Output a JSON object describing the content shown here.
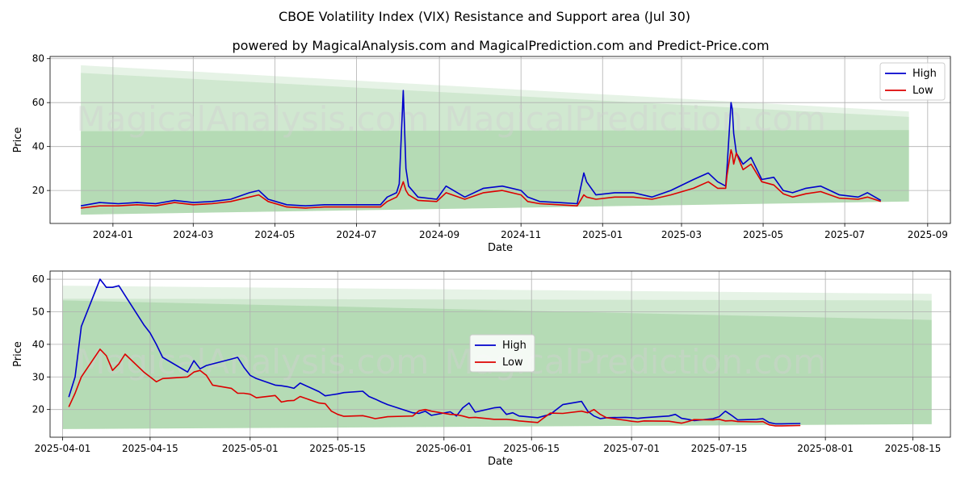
{
  "title": "CBOE Volatility Index (VIX) Resistance and Support area (Jul 30)",
  "subtitle": "powered by MagicalAnalysis.com and MagicalPrediction.com and Predict-Price.com",
  "watermarks": [
    "MagicalAnalysis.com",
    "MagicalPrediction.com"
  ],
  "colors": {
    "high": "#0000cc",
    "low": "#dd0000",
    "band": "#2e9b2e",
    "grid": "#b0b0b0"
  },
  "chart_data": [
    {
      "type": "line",
      "xlabel": "Date",
      "ylabel": "Price",
      "xlim": [
        "2023-11-15",
        "2025-09-18"
      ],
      "ylim": [
        5,
        81
      ],
      "yticks": [
        20,
        40,
        60,
        80
      ],
      "xticks": [
        "2024-01",
        "2024-03",
        "2024-05",
        "2024-07",
        "2024-09",
        "2024-11",
        "2025-01",
        "2025-03",
        "2025-05",
        "2025-07",
        "2025-09"
      ],
      "grid": true,
      "legend": "top-right",
      "bands": [
        {
          "x": [
            "2023-12-08",
            "2025-08-18"
          ],
          "upper": [
            77,
            56
          ],
          "lower": [
            9,
            15
          ],
          "opacity": 0.12
        },
        {
          "x": [
            "2023-12-08",
            "2025-08-18"
          ],
          "upper": [
            73.5,
            53.5
          ],
          "lower": [
            9,
            15
          ],
          "opacity": 0.12
        },
        {
          "x": [
            "2023-12-08",
            "2025-08-18"
          ],
          "upper": [
            47,
            47.5
          ],
          "lower": [
            9,
            15
          ],
          "opacity": 0.16
        }
      ],
      "x": [
        "2023-12-08",
        "2023-12-22",
        "2024-01-05",
        "2024-01-19",
        "2024-02-02",
        "2024-02-16",
        "2024-03-01",
        "2024-03-15",
        "2024-03-29",
        "2024-04-12",
        "2024-04-19",
        "2024-04-26",
        "2024-05-10",
        "2024-05-24",
        "2024-06-07",
        "2024-06-21",
        "2024-07-05",
        "2024-07-19",
        "2024-07-24",
        "2024-07-31",
        "2024-08-02",
        "2024-08-05",
        "2024-08-07",
        "2024-08-09",
        "2024-08-16",
        "2024-08-30",
        "2024-09-06",
        "2024-09-20",
        "2024-10-04",
        "2024-10-18",
        "2024-11-01",
        "2024-11-06",
        "2024-11-15",
        "2024-11-29",
        "2024-12-13",
        "2024-12-18",
        "2024-12-20",
        "2024-12-27",
        "2025-01-10",
        "2025-01-24",
        "2025-02-07",
        "2025-02-21",
        "2025-03-10",
        "2025-03-21",
        "2025-03-28",
        "2025-04-03",
        "2025-04-04",
        "2025-04-07",
        "2025-04-08",
        "2025-04-09",
        "2025-04-11",
        "2025-04-16",
        "2025-04-22",
        "2025-04-30",
        "2025-05-09",
        "2025-05-16",
        "2025-05-23",
        "2025-06-02",
        "2025-06-13",
        "2025-06-20",
        "2025-06-27",
        "2025-07-11",
        "2025-07-18",
        "2025-07-28"
      ],
      "series": [
        {
          "name": "High",
          "values": [
            13,
            14.5,
            14,
            14.5,
            14,
            15.5,
            14.5,
            15,
            16,
            19,
            20,
            16,
            13.5,
            13,
            13.5,
            13.5,
            13.5,
            13.5,
            17,
            19,
            23,
            65.5,
            30,
            22,
            17,
            16,
            22,
            17,
            21,
            22,
            20,
            17,
            15,
            14.5,
            14,
            28,
            24,
            18,
            19,
            19,
            17,
            20,
            25,
            28,
            24,
            22,
            30,
            60,
            57,
            46,
            37,
            32,
            35,
            25,
            26,
            20,
            19,
            21,
            22,
            20,
            18,
            17,
            19,
            15.5
          ]
        },
        {
          "name": "Low",
          "values": [
            12,
            13,
            13,
            13.5,
            13,
            14.5,
            13.5,
            14,
            15,
            17,
            18,
            15,
            12.5,
            12,
            12.5,
            12.5,
            12.5,
            12.5,
            15,
            17,
            19,
            24,
            20,
            18,
            15.5,
            15,
            19,
            16,
            19,
            20,
            18,
            15,
            14,
            13.5,
            13,
            18,
            17,
            16,
            17,
            17,
            16,
            18,
            21,
            24,
            21,
            21,
            27,
            38.5,
            36.5,
            32,
            37,
            29.5,
            32,
            24,
            22.5,
            18.5,
            17,
            18.5,
            19.5,
            18,
            16.5,
            16,
            17,
            15
          ]
        }
      ]
    },
    {
      "type": "line",
      "xlabel": "Date",
      "ylabel": "Price",
      "xlim": [
        "2025-03-30",
        "2025-08-21"
      ],
      "ylim": [
        11.5,
        62.5
      ],
      "yticks": [
        20,
        30,
        40,
        50,
        60
      ],
      "xticks": [
        "2025-04-01",
        "2025-04-15",
        "2025-05-01",
        "2025-05-15",
        "2025-06-01",
        "2025-06-15",
        "2025-07-01",
        "2025-07-15",
        "2025-08-01",
        "2025-08-15"
      ],
      "grid": true,
      "legend": "center",
      "bands": [
        {
          "x": [
            "2025-04-01",
            "2025-08-18"
          ],
          "upper": [
            58,
            55.5
          ],
          "lower": [
            14,
            15.5
          ],
          "opacity": 0.12
        },
        {
          "x": [
            "2025-04-01",
            "2025-08-18"
          ],
          "upper": [
            54,
            53.5
          ],
          "lower": [
            14,
            15.5
          ],
          "opacity": 0.12
        },
        {
          "x": [
            "2025-04-01",
            "2025-08-18"
          ],
          "upper": [
            53.5,
            47.5
          ],
          "lower": [
            14,
            15.5
          ],
          "opacity": 0.16
        }
      ],
      "x": [
        "2025-04-02",
        "2025-04-03",
        "2025-04-04",
        "2025-04-07",
        "2025-04-08",
        "2025-04-09",
        "2025-04-10",
        "2025-04-11",
        "2025-04-14",
        "2025-04-15",
        "2025-04-16",
        "2025-04-17",
        "2025-04-21",
        "2025-04-22",
        "2025-04-23",
        "2025-04-24",
        "2025-04-25",
        "2025-04-28",
        "2025-04-29",
        "2025-04-30",
        "2025-05-01",
        "2025-05-02",
        "2025-05-05",
        "2025-05-06",
        "2025-05-07",
        "2025-05-08",
        "2025-05-09",
        "2025-05-12",
        "2025-05-13",
        "2025-05-14",
        "2025-05-15",
        "2025-05-16",
        "2025-05-19",
        "2025-05-20",
        "2025-05-21",
        "2025-05-22",
        "2025-05-23",
        "2025-05-27",
        "2025-05-28",
        "2025-05-29",
        "2025-05-30",
        "2025-06-02",
        "2025-06-03",
        "2025-06-04",
        "2025-06-05",
        "2025-06-06",
        "2025-06-09",
        "2025-06-10",
        "2025-06-11",
        "2025-06-12",
        "2025-06-13",
        "2025-06-16",
        "2025-06-17",
        "2025-06-18",
        "2025-06-20",
        "2025-06-23",
        "2025-06-24",
        "2025-06-25",
        "2025-06-26",
        "2025-06-27",
        "2025-06-30",
        "2025-07-01",
        "2025-07-02",
        "2025-07-03",
        "2025-07-07",
        "2025-07-08",
        "2025-07-09",
        "2025-07-10",
        "2025-07-11",
        "2025-07-14",
        "2025-07-15",
        "2025-07-16",
        "2025-07-17",
        "2025-07-18",
        "2025-07-21",
        "2025-07-22",
        "2025-07-23",
        "2025-07-24",
        "2025-07-25",
        "2025-07-28"
      ],
      "series": [
        {
          "name": "High",
          "values": [
            23.8,
            30,
            45.5,
            60,
            57.5,
            57.5,
            58,
            55,
            46,
            43.5,
            40,
            36,
            31.5,
            35,
            32.5,
            33.5,
            34,
            35.5,
            36,
            33,
            30.5,
            29.5,
            27.5,
            27.3,
            27,
            26.5,
            28.1,
            25.5,
            24.2,
            24.5,
            24.8,
            25.2,
            25.6,
            24,
            23.2,
            22.3,
            21.5,
            19,
            18.8,
            19.5,
            18.2,
            19.3,
            18,
            20.5,
            22,
            19.2,
            20.5,
            20.7,
            18.5,
            19,
            18,
            17.5,
            18,
            18.5,
            21.5,
            22.5,
            19.5,
            18,
            17.2,
            17.5,
            17.6,
            17.5,
            17.3,
            17.5,
            18,
            18.5,
            17.3,
            17,
            16.6,
            17.2,
            17.8,
            19.5,
            18.2,
            16.8,
            17,
            17.2,
            16,
            15.6,
            15.6,
            15.7
          ]
        },
        {
          "name": "Low",
          "values": [
            20.8,
            25,
            30,
            38.5,
            36.5,
            32,
            34,
            37,
            31.5,
            30,
            28.5,
            29.5,
            30,
            31.5,
            32,
            30.5,
            27.5,
            26.5,
            25,
            25,
            24.7,
            23.6,
            24.3,
            22.3,
            22.7,
            22.8,
            24,
            22,
            21.8,
            19.5,
            18.5,
            17.9,
            18.1,
            17.7,
            17.2,
            17.5,
            17.8,
            18,
            19.6,
            20,
            19.5,
            18.5,
            18.4,
            18,
            17.5,
            17.6,
            17,
            17,
            17,
            16.8,
            16.5,
            16,
            17.5,
            18.9,
            18.8,
            19.5,
            19,
            20,
            18.5,
            17.5,
            16.7,
            16.4,
            16.2,
            16.5,
            16.4,
            16.1,
            15.8,
            16.3,
            16.9,
            16.8,
            17,
            16.5,
            16.6,
            16.3,
            16.2,
            16.3,
            15.3,
            15,
            15,
            15.1
          ]
        }
      ]
    }
  ]
}
